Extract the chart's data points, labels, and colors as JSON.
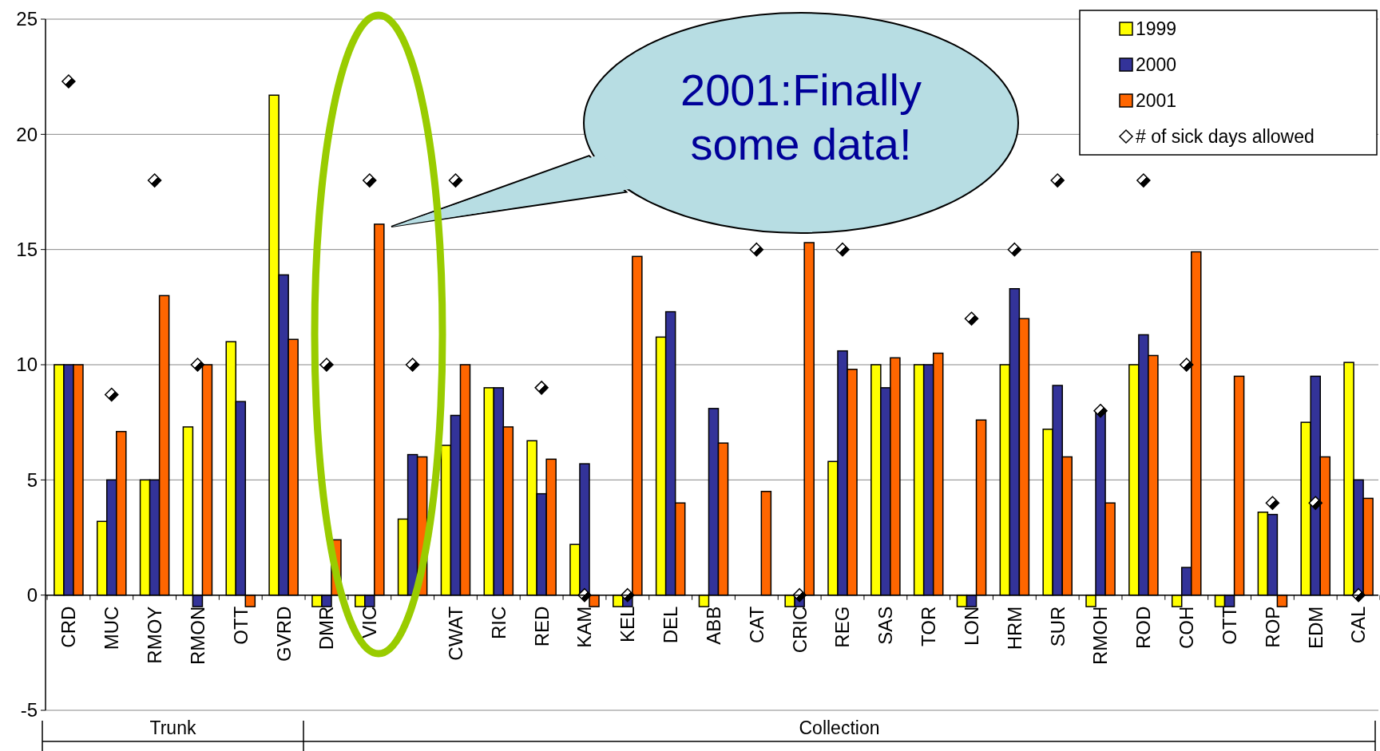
{
  "chart_data": {
    "type": "bar",
    "categories": [
      "CRD",
      "MUC",
      "RMOY",
      "RMON",
      "OTT",
      "GVRD",
      "DMR",
      "VIC",
      null,
      "CWAT",
      "RIC",
      "RED",
      "KAM",
      "KEL",
      "DEL",
      "ABB",
      "CAT",
      "CRIC",
      "REG",
      "SAS",
      "TOR",
      "LON",
      "HRM",
      "SUR",
      "RMOH",
      "ROD",
      "COH",
      "OTT",
      "ROP",
      "EDM",
      "CAL"
    ],
    "series": [
      {
        "name": "1999",
        "color": "#ffff00",
        "values": [
          10,
          3.2,
          5,
          7.3,
          11,
          21.7,
          -0.5,
          -0.5,
          3.3,
          6.5,
          9,
          6.7,
          2.2,
          -0.5,
          11.2,
          -0.5,
          null,
          -0.5,
          5.8,
          10,
          10,
          -0.5,
          10,
          7.2,
          -0.5,
          10,
          -0.5,
          -0.5,
          3.6,
          7.5,
          10.1
        ]
      },
      {
        "name": "2000",
        "color": "#333399",
        "values": [
          10,
          5,
          5,
          -0.5,
          8.4,
          13.9,
          -0.5,
          -0.5,
          6.1,
          7.8,
          9,
          4.4,
          5.7,
          -0.5,
          12.3,
          8.1,
          null,
          -0.5,
          10.6,
          9,
          10,
          -0.5,
          13.3,
          9.1,
          7.9,
          11.3,
          1.2,
          -0.5,
          3.5,
          9.5,
          5
        ]
      },
      {
        "name": "2001",
        "color": "#ff6600",
        "values": [
          10,
          7.1,
          13,
          10,
          -0.5,
          11.1,
          2.4,
          16.1,
          6,
          10,
          7.3,
          5.9,
          -0.5,
          14.7,
          4,
          6.6,
          4.5,
          15.3,
          9.8,
          10.3,
          10.5,
          7.6,
          12,
          6,
          4,
          10.4,
          14.9,
          9.5,
          -0.5,
          6,
          4.2
        ]
      },
      {
        "name": "# of sick days allowed",
        "type": "scatter",
        "marker": "diamond",
        "color": "#000000",
        "values": [
          22.3,
          8.7,
          18,
          10,
          null,
          null,
          10,
          18,
          10,
          18,
          null,
          9,
          0,
          0,
          null,
          null,
          15,
          0,
          15,
          null,
          null,
          12,
          15,
          18,
          8,
          18,
          10,
          null,
          4,
          4,
          0
        ]
      }
    ],
    "ylim": [
      -5,
      25
    ],
    "yticks": [
      -5,
      0,
      5,
      10,
      15,
      20,
      25
    ],
    "grid": "y",
    "legend": "top right",
    "annotations": [
      "2001:Finally some data!",
      "Trunk",
      "Collection"
    ]
  }
}
